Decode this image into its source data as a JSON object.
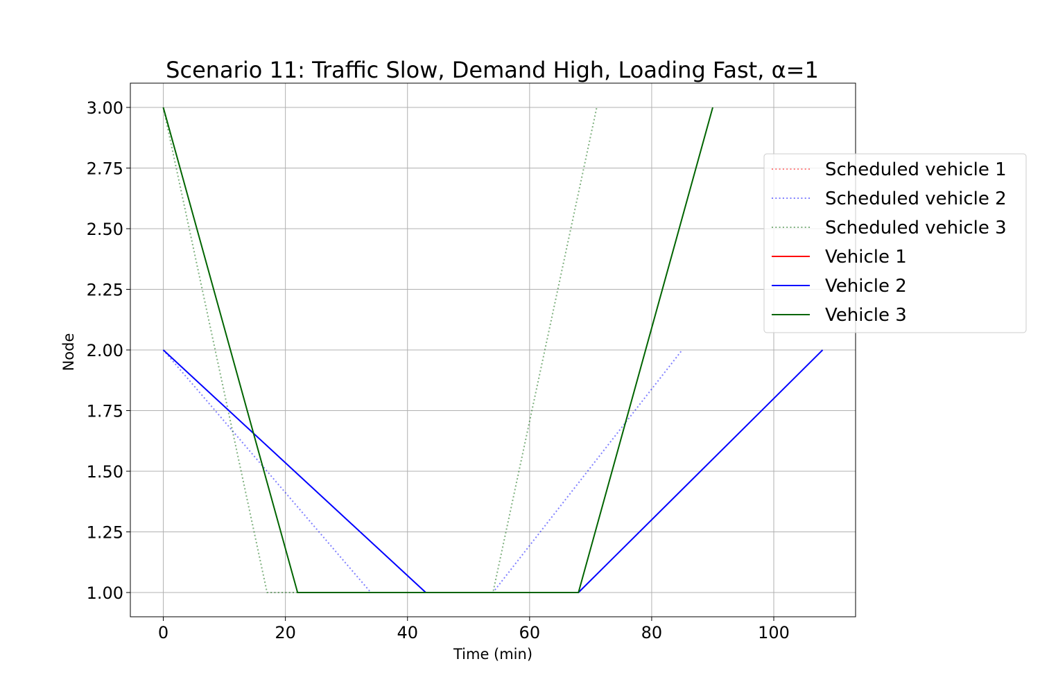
{
  "chart_data": {
    "type": "line",
    "title": "Scenario 11: Traffic Slow, Demand High, Loading Fast, α=1",
    "xlabel": "Time (min)",
    "ylabel": "Node",
    "xlim": [
      -5.4,
      113.4
    ],
    "ylim": [
      0.9,
      3.1
    ],
    "xticks": [
      0,
      20,
      40,
      60,
      80,
      100
    ],
    "xtick_labels": [
      "0",
      "20",
      "40",
      "60",
      "80",
      "100"
    ],
    "yticks": [
      1.0,
      1.25,
      1.5,
      1.75,
      2.0,
      2.25,
      2.5,
      2.75,
      3.0
    ],
    "ytick_labels": [
      "1.00",
      "1.25",
      "1.50",
      "1.75",
      "2.00",
      "2.25",
      "2.50",
      "2.75",
      "3.00"
    ],
    "grid": true,
    "legend_position": "right, outside upper",
    "series": [
      {
        "name": "Scheduled vehicle 1",
        "style": "dotted",
        "color": "#ff0000",
        "alpha": 0.5,
        "x": [],
        "y": []
      },
      {
        "name": "Scheduled vehicle 2",
        "style": "dotted",
        "color": "#0000ff",
        "alpha": 0.5,
        "x": [
          0,
          34,
          54,
          85
        ],
        "y": [
          2,
          1,
          1,
          2
        ]
      },
      {
        "name": "Scheduled vehicle 3",
        "style": "dotted",
        "color": "#006400",
        "alpha": 0.5,
        "x": [
          0,
          17,
          54,
          71
        ],
        "y": [
          3,
          1,
          1,
          3
        ]
      },
      {
        "name": "Vehicle 1",
        "style": "solid",
        "color": "#ff0000",
        "alpha": 1,
        "x": [],
        "y": []
      },
      {
        "name": "Vehicle 2",
        "style": "solid",
        "color": "#0000ff",
        "alpha": 1,
        "x": [
          0,
          43,
          68,
          108
        ],
        "y": [
          2,
          1,
          1,
          2
        ]
      },
      {
        "name": "Vehicle 3",
        "style": "solid",
        "color": "#006400",
        "alpha": 1,
        "x": [
          0,
          22,
          68,
          90
        ],
        "y": [
          3,
          1,
          1,
          3
        ]
      }
    ]
  }
}
